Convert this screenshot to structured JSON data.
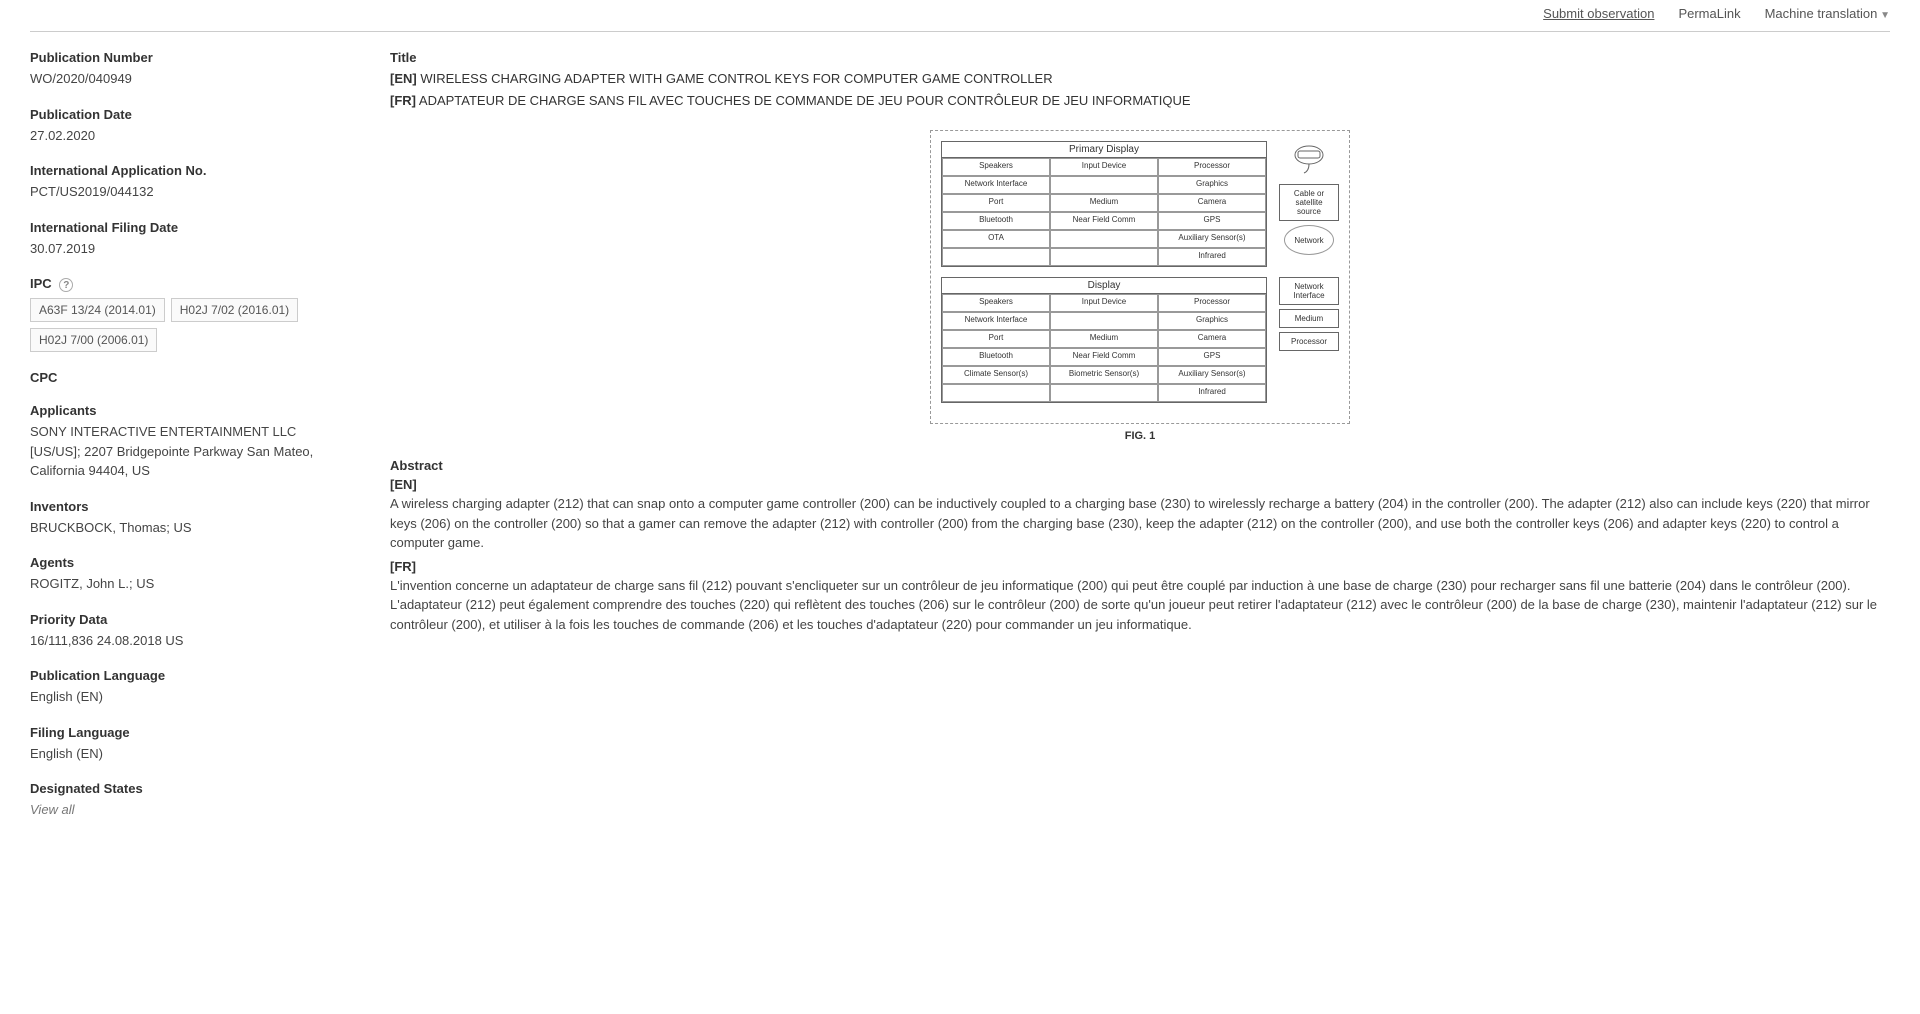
{
  "topLinks": {
    "submit": "Submit observation",
    "permalink": "PermaLink",
    "translation": "Machine translation"
  },
  "sidebar": {
    "pubNumber": {
      "label": "Publication Number",
      "value": "WO/2020/040949"
    },
    "pubDate": {
      "label": "Publication Date",
      "value": "27.02.2020"
    },
    "intlAppNo": {
      "label": "International Application No.",
      "value": "PCT/US2019/044132"
    },
    "intlFilingDate": {
      "label": "International Filing Date",
      "value": "30.07.2019"
    },
    "ipc": {
      "label": "IPC",
      "tags": [
        "A63F 13/24 (2014.01)",
        "H02J 7/02 (2016.01)",
        "H02J 7/00 (2006.01)"
      ]
    },
    "cpc": {
      "label": "CPC"
    },
    "applicants": {
      "label": "Applicants",
      "value": "SONY INTERACTIVE ENTERTAINMENT LLC [US/US]; 2207 Bridgepointe Parkway San Mateo, California 94404, US"
    },
    "inventors": {
      "label": "Inventors",
      "value": "BRUCKBOCK, Thomas; US"
    },
    "agents": {
      "label": "Agents",
      "value": "ROGITZ, John L.; US"
    },
    "priority": {
      "label": "Priority Data",
      "value": "16/111,836   24.08.2018   US"
    },
    "pubLang": {
      "label": "Publication Language",
      "value": "English (EN)"
    },
    "filingLang": {
      "label": "Filing Language",
      "value": "English (EN)"
    },
    "designated": {
      "label": "Designated States",
      "value": "View all"
    }
  },
  "main": {
    "titleLabel": "Title",
    "titleEn": {
      "prefix": "[EN]",
      "text": "WIRELESS CHARGING ADAPTER WITH GAME CONTROL KEYS FOR COMPUTER GAME CONTROLLER"
    },
    "titleFr": {
      "prefix": "[FR]",
      "text": "ADAPTATEUR DE CHARGE SANS FIL AVEC TOUCHES DE COMMANDE DE JEU POUR CONTRÔLEUR DE JEU INFORMATIQUE"
    },
    "figure": {
      "caption": "FIG. 1",
      "block1Header": "Primary Display",
      "block2Header": "Display",
      "cells1": [
        "Speakers",
        "Input Device",
        "Processor",
        "Network Interface",
        "",
        "Graphics",
        "Port",
        "Medium",
        "Camera",
        "Bluetooth",
        "Near Field Comm",
        "GPS",
        "OTA",
        "",
        "Auxiliary Sensor(s)",
        "",
        "",
        "Infrared"
      ],
      "cells2": [
        "Speakers",
        "Input Device",
        "Processor",
        "Network Interface",
        "",
        "Graphics",
        "Port",
        "Medium",
        "Camera",
        "Bluetooth",
        "Near Field Comm",
        "GPS",
        "Climate Sensor(s)",
        "Biometric Sensor(s)",
        "Auxiliary Sensor(s)",
        "",
        "",
        "Infrared"
      ],
      "sideBoxes": {
        "cable": "Cable or satellite source",
        "network": "Network",
        "netif": "Network Interface",
        "medium": "Medium",
        "processor": "Processor"
      }
    },
    "abstractLabel": "Abstract",
    "abstractEn": {
      "prefix": "[EN]",
      "text": "A wireless charging adapter (212) that can snap onto a computer game controller (200) can be inductively coupled to a charging base (230) to wirelessly recharge a battery (204) in the controller (200). The adapter (212) also can include keys (220) that mirror keys (206) on the controller (200) so that a gamer can remove the adapter (212) with controller (200) from the charging base (230), keep the adapter (212) on the controller (200), and use both the controller keys (206) and adapter keys (220) to control a computer game."
    },
    "abstractFr": {
      "prefix": "[FR]",
      "text": "L'invention concerne un adaptateur de charge sans fil (212) pouvant s'encliqueter sur un contrôleur de jeu informatique (200) qui peut être couplé par induction à une base de charge (230) pour recharger sans fil une batterie (204) dans le contrôleur (200). L'adaptateur (212) peut également comprendre des touches (220) qui reflètent des touches (206) sur le contrôleur (200) de sorte qu'un joueur peut retirer l'adaptateur (212) avec le contrôleur (200) de la base de charge (230), maintenir l'adaptateur (212) sur le contrôleur (200), et utiliser à la fois les touches de commande (206) et les touches d'adaptateur (220) pour commander un jeu informatique."
    }
  }
}
